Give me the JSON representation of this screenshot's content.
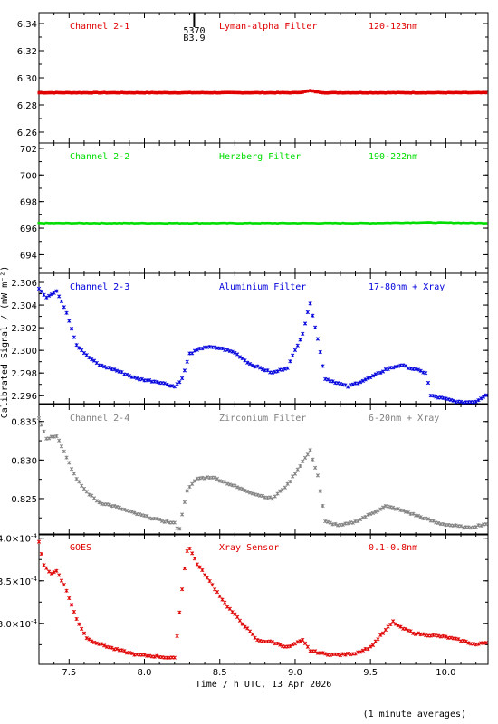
{
  "figure": {
    "xlabel": "Time / h UTC, 13 Apr 2026",
    "ylabel": "Calibrated Signal / (mW m⁻²)",
    "footnote": "(1 minute averages)",
    "marker_label_top": "5370",
    "marker_label_bottom": "B3.9",
    "xticks": [
      7.5,
      8.0,
      8.5,
      9.0,
      9.5,
      10.0
    ],
    "xtick_labels": [
      "7.5",
      "8.0",
      "8.5",
      "9.0",
      "9.5",
      "10.0"
    ]
  },
  "chart_data": [
    {
      "type": "scatter",
      "channel": "Channel 2-1",
      "filter": "Lyman-alpha Filter",
      "band": "120-123nm",
      "color": "#e00000",
      "xlim": [
        7.3,
        10.28
      ],
      "ylim": [
        6.252,
        6.348
      ],
      "yticks": [
        6.26,
        6.28,
        6.3,
        6.32,
        6.34
      ],
      "ytick_labels": [
        "6.26",
        "6.28",
        "6.30",
        "6.32",
        "6.34"
      ],
      "x": [
        7.3,
        9.0,
        9.05,
        9.1,
        9.15,
        9.2,
        10.28
      ],
      "y": [
        6.289,
        6.289,
        6.2895,
        6.2905,
        6.2895,
        6.289,
        6.289
      ]
    },
    {
      "type": "scatter",
      "channel": "Channel 2-2",
      "filter": "Herzberg Filter",
      "band": "190-222nm",
      "color": "#00dd00",
      "xlim": [
        7.3,
        10.28
      ],
      "ylim": [
        692.6,
        702.4
      ],
      "yticks": [
        694,
        696,
        698,
        700,
        702
      ],
      "ytick_labels": [
        "694",
        "696",
        "698",
        "700",
        "702"
      ],
      "x": [
        7.3,
        8.0,
        8.5,
        9.0,
        9.5,
        9.85,
        10.28
      ],
      "y": [
        696.35,
        696.35,
        696.35,
        696.35,
        696.35,
        696.4,
        696.35
      ]
    },
    {
      "type": "scatter",
      "channel": "Channel 2-3",
      "filter": "Aluminium Filter",
      "band": "17-80nm + Xray",
      "color": "#0000dd",
      "xlim": [
        7.3,
        10.28
      ],
      "ylim": [
        2.2953,
        2.3068
      ],
      "yticks": [
        2.296,
        2.298,
        2.3,
        2.302,
        2.304,
        2.306
      ],
      "ytick_labels": [
        "2.296",
        "2.298",
        "2.300",
        "2.302",
        "2.304",
        "2.306"
      ],
      "x": [
        7.3,
        7.35,
        7.42,
        7.48,
        7.55,
        7.62,
        7.7,
        7.8,
        7.95,
        8.1,
        8.2,
        8.25,
        8.3,
        8.4,
        8.5,
        8.6,
        8.7,
        8.85,
        8.95,
        9.05,
        9.1,
        9.15,
        9.2,
        9.35,
        9.5,
        9.6,
        9.7,
        9.8,
        9.87,
        9.9,
        10.0,
        10.1,
        10.2,
        10.28
      ],
      "y": [
        2.3055,
        2.3047,
        2.3052,
        2.3035,
        2.3005,
        2.2995,
        2.2987,
        2.2983,
        2.2975,
        2.2972,
        2.2968,
        2.2975,
        2.2997,
        2.3003,
        2.3002,
        2.2998,
        2.2988,
        2.298,
        2.2985,
        2.3015,
        2.3042,
        2.301,
        2.2975,
        2.2968,
        2.2976,
        2.2983,
        2.2987,
        2.2983,
        2.298,
        2.296,
        2.2957,
        2.2954,
        2.2955,
        2.2962
      ]
    },
    {
      "type": "scatter",
      "channel": "Channel 2-4",
      "filter": "Zirconium Filter",
      "band": "6-20nm + Xray",
      "color": "#808080",
      "xlim": [
        7.3,
        10.28
      ],
      "ylim": [
        0.8203,
        0.8372
      ],
      "yticks": [
        0.825,
        0.83,
        0.835
      ],
      "ytick_labels": [
        "0.825",
        "0.830",
        "0.835"
      ],
      "x": [
        7.3,
        7.35,
        7.42,
        7.48,
        7.55,
        7.62,
        7.7,
        7.8,
        7.95,
        8.1,
        8.2,
        8.23,
        8.28,
        8.35,
        8.45,
        8.55,
        8.65,
        8.75,
        8.85,
        8.95,
        9.05,
        9.1,
        9.15,
        9.2,
        9.3,
        9.4,
        9.5,
        9.6,
        9.65,
        9.75,
        9.85,
        9.95,
        10.05,
        10.15,
        10.28
      ],
      "y": [
        0.8355,
        0.8328,
        0.8332,
        0.8305,
        0.8275,
        0.8258,
        0.8245,
        0.824,
        0.823,
        0.8222,
        0.8218,
        0.8208,
        0.826,
        0.8276,
        0.8278,
        0.827,
        0.8262,
        0.8255,
        0.825,
        0.8268,
        0.8298,
        0.8312,
        0.828,
        0.822,
        0.8215,
        0.822,
        0.823,
        0.824,
        0.8238,
        0.8232,
        0.8225,
        0.8218,
        0.8215,
        0.8212,
        0.8218
      ]
    },
    {
      "type": "scatter",
      "channel": "GOES",
      "filter": "Xray Sensor",
      "band": "0.1-0.8nm",
      "color": "#e00000",
      "ytick_exponent": "-4",
      "xlim": [
        7.3,
        10.28
      ],
      "ylim": [
        0.000252,
        0.000405
      ],
      "yticks": [
        0.0003,
        0.00035,
        0.0004
      ],
      "ytick_labels": [
        "3.0",
        "3.5",
        "4.0"
      ],
      "x": [
        7.3,
        7.33,
        7.38,
        7.42,
        7.48,
        7.55,
        7.62,
        7.7,
        7.8,
        7.95,
        8.1,
        8.2,
        8.25,
        8.28,
        8.3,
        8.35,
        8.45,
        8.55,
        8.65,
        8.75,
        8.85,
        8.95,
        9.05,
        9.1,
        9.2,
        9.3,
        9.4,
        9.5,
        9.6,
        9.65,
        9.7,
        9.8,
        9.9,
        10.0,
        10.1,
        10.2,
        10.28
      ],
      "y": [
        0.000395,
        0.00037,
        0.000358,
        0.000362,
        0.00034,
        0.000305,
        0.000282,
        0.000276,
        0.00027,
        0.000263,
        0.000261,
        0.000259,
        0.00034,
        0.000385,
        0.000388,
        0.00037,
        0.000345,
        0.00032,
        0.0003,
        0.00028,
        0.000278,
        0.000272,
        0.00028,
        0.000268,
        0.000264,
        0.000263,
        0.000265,
        0.000272,
        0.000292,
        0.000302,
        0.000295,
        0.000288,
        0.000286,
        0.000284,
        0.00028,
        0.000275,
        0.000278
      ]
    }
  ]
}
